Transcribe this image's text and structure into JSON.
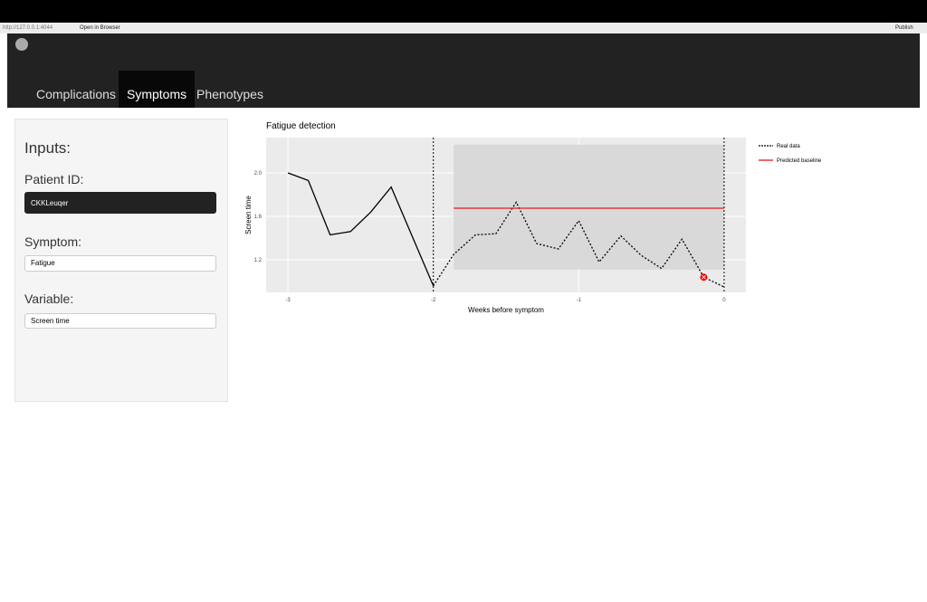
{
  "toolbar": {
    "url": "http://127.0.0.1:4044",
    "open_browser": "Open in Browser",
    "publish": "Publish"
  },
  "nav": {
    "tabs": [
      "Complications",
      "Symptoms",
      "Phenotypes"
    ],
    "active": 1
  },
  "sidebar": {
    "title": "Inputs:",
    "patient_label": "Patient ID:",
    "patient_value": "CKKLeuqer",
    "symptom_label": "Symptom:",
    "symptom_value": "Fatigue",
    "variable_label": "Variable:",
    "variable_value": "Screen time"
  },
  "chart_data": {
    "type": "line",
    "title": "Fatigue detection",
    "xlabel": "Weeks before symptom",
    "ylabel": "Screen time",
    "xlim": [
      -3.15,
      0.15
    ],
    "ylim": [
      0.9,
      2.325
    ],
    "xticks": [
      -3,
      -2,
      -1,
      0
    ],
    "yticks": [
      {
        "value": 2,
        "label": "2.0"
      },
      {
        "value": 1.6,
        "label": "1.6"
      },
      {
        "value": 1.2,
        "label": "1.2"
      }
    ],
    "grid": true,
    "vlines": [
      -2,
      0
    ],
    "band": {
      "x": [
        -1.86,
        0
      ],
      "ylow": 1.11,
      "yhigh": 2.26,
      "color": "#d9d9d9"
    },
    "series": [
      {
        "name": "Real data",
        "color": "#000000",
        "x": [
          -3,
          -2.86,
          -2.71,
          -2.57,
          -2.43,
          -2.29,
          -2,
          -1.86,
          -1.71,
          -1.57,
          -1.43,
          -1.29,
          -1.14,
          -1,
          -0.86,
          -0.71,
          -0.57,
          -0.43,
          -0.29,
          -0.14,
          0
        ],
        "values": [
          2.0,
          1.93,
          1.43,
          1.46,
          1.64,
          1.87,
          0.96,
          1.25,
          1.43,
          1.44,
          1.73,
          1.35,
          1.3,
          1.56,
          1.18,
          1.42,
          1.24,
          1.12,
          1.39,
          1.04,
          0.95
        ]
      },
      {
        "name": "Predicted baseline",
        "color": "#e41a1c",
        "x": [
          -1.86,
          0
        ],
        "values": [
          1.675,
          1.675
        ]
      }
    ],
    "anomaly": {
      "x": -0.14,
      "y": 1.04,
      "color": "#ff0000"
    }
  }
}
